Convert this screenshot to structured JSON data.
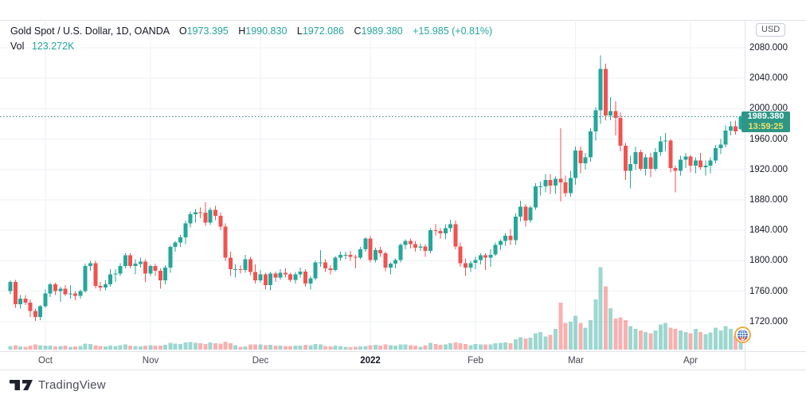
{
  "header": {
    "title": "Gold Spot / U.S. Dollar, 1D, OANDA",
    "o_label": "O",
    "o": "1973.395",
    "h_label": "H",
    "h": "1990.830",
    "l_label": "L",
    "l": "1972.086",
    "c_label": "C",
    "c": "1989.380",
    "change": "+15.985 (+0.81%)",
    "vol_label": "Vol",
    "vol_value": "123.272K"
  },
  "price_axis": {
    "currency_button": "USD",
    "tick_labels": [
      "2080.000",
      "2040.000",
      "2000.000",
      "1960.000",
      "1920.000",
      "1880.000",
      "1840.000",
      "1800.000",
      "1760.000",
      "1720.000"
    ]
  },
  "badge": {
    "price": "1989.380",
    "countdown": "13:59:25"
  },
  "footer": {
    "brand": "TradingView"
  },
  "colors": {
    "up": "#26a69a",
    "down": "#ef5350",
    "vol_up": "rgba(38,166,154,0.45)",
    "vol_down": "rgba(239,83,80,0.45)",
    "badge_bg": "#2d9687",
    "badge_price_text": "#ffffff",
    "badge_countdown_text": "#efe26a",
    "grid": "#eef1f6",
    "border": "#e0e3eb",
    "text": "#131722",
    "muted_text": "#50535e",
    "value_text": "#26a69a",
    "price_line": "#2d8f85",
    "background": "#ffffff"
  },
  "chart_data": {
    "type": "candlestick",
    "title": "Gold Spot / U.S. Dollar, 1D, OANDA",
    "interval": "1D",
    "exchange": "OANDA",
    "currency": "USD",
    "legend_position": "top-left",
    "grid": true,
    "y_ticks": [
      2080,
      2040,
      2000,
      1960,
      1920,
      1880,
      1840,
      1800,
      1760,
      1720
    ],
    "ylim": [
      1679,
      2117
    ],
    "x_ticks": [
      {
        "label": "Oct",
        "index": 7
      },
      {
        "label": "Nov",
        "index": 28
      },
      {
        "label": "Dec",
        "index": 50
      },
      {
        "label": "2022",
        "index": 72,
        "emphasis": true
      },
      {
        "label": "Feb",
        "index": 93
      },
      {
        "label": "Mar",
        "index": 113
      },
      {
        "label": "Apr",
        "index": 136
      }
    ],
    "last_price": 1989.38,
    "last_change": "+15.985 (+0.81%)",
    "countdown": "13:59:25",
    "volume_unit": "K",
    "last_volume": 123.272,
    "ohlcv": [
      [
        1760,
        1774,
        1756,
        1772,
        25
      ],
      [
        1772,
        1775,
        1738,
        1743,
        30
      ],
      [
        1743,
        1755,
        1737,
        1750,
        22
      ],
      [
        1750,
        1755,
        1742,
        1745,
        20
      ],
      [
        1745,
        1749,
        1726,
        1734,
        28
      ],
      [
        1734,
        1737,
        1721,
        1726,
        35
      ],
      [
        1726,
        1742,
        1722,
        1740,
        30
      ],
      [
        1740,
        1762,
        1738,
        1757,
        28
      ],
      [
        1757,
        1771,
        1752,
        1769,
        26
      ],
      [
        1769,
        1771,
        1755,
        1760,
        22
      ],
      [
        1760,
        1766,
        1746,
        1763,
        24
      ],
      [
        1763,
        1768,
        1754,
        1756,
        26
      ],
      [
        1756,
        1768,
        1750,
        1757,
        20
      ],
      [
        1757,
        1760,
        1748,
        1754,
        22
      ],
      [
        1754,
        1762,
        1750,
        1760,
        24
      ],
      [
        1760,
        1796,
        1758,
        1793,
        40
      ],
      [
        1793,
        1800,
        1787,
        1797,
        38
      ],
      [
        1797,
        1800,
        1764,
        1767,
        30
      ],
      [
        1767,
        1772,
        1760,
        1765,
        24
      ],
      [
        1765,
        1774,
        1761,
        1769,
        22
      ],
      [
        1769,
        1789,
        1766,
        1782,
        26
      ],
      [
        1782,
        1789,
        1772,
        1783,
        24
      ],
      [
        1783,
        1797,
        1780,
        1793,
        30
      ],
      [
        1793,
        1810,
        1790,
        1807,
        34
      ],
      [
        1807,
        1810,
        1790,
        1793,
        28
      ],
      [
        1793,
        1802,
        1782,
        1796,
        24
      ],
      [
        1796,
        1804,
        1791,
        1799,
        22
      ],
      [
        1799,
        1802,
        1772,
        1783,
        26
      ],
      [
        1783,
        1795,
        1780,
        1793,
        30
      ],
      [
        1793,
        1796,
        1780,
        1787,
        28
      ],
      [
        1787,
        1790,
        1763,
        1774,
        26
      ],
      [
        1774,
        1794,
        1769,
        1791,
        32
      ],
      [
        1791,
        1820,
        1784,
        1818,
        45
      ],
      [
        1818,
        1826,
        1812,
        1824,
        40
      ],
      [
        1824,
        1834,
        1818,
        1831,
        38
      ],
      [
        1831,
        1853,
        1822,
        1849,
        48
      ],
      [
        1849,
        1865,
        1844,
        1861,
        52
      ],
      [
        1861,
        1868,
        1850,
        1864,
        46
      ],
      [
        1864,
        1870,
        1856,
        1863,
        42
      ],
      [
        1863,
        1877,
        1846,
        1850,
        38
      ],
      [
        1850,
        1870,
        1847,
        1867,
        50
      ],
      [
        1867,
        1872,
        1853,
        1859,
        44
      ],
      [
        1859,
        1863,
        1840,
        1845,
        40
      ],
      [
        1845,
        1849,
        1800,
        1804,
        55
      ],
      [
        1804,
        1812,
        1780,
        1789,
        42
      ],
      [
        1789,
        1795,
        1778,
        1789,
        30
      ],
      [
        1789,
        1794,
        1783,
        1788,
        18
      ],
      [
        1788,
        1808,
        1784,
        1802,
        22
      ],
      [
        1802,
        1805,
        1781,
        1785,
        35
      ],
      [
        1785,
        1795,
        1770,
        1774,
        35
      ],
      [
        1774,
        1788,
        1771,
        1782,
        35
      ],
      [
        1782,
        1784,
        1762,
        1768,
        30
      ],
      [
        1768,
        1785,
        1761,
        1783,
        32
      ],
      [
        1783,
        1786,
        1772,
        1778,
        26
      ],
      [
        1778,
        1789,
        1775,
        1784,
        28
      ],
      [
        1784,
        1790,
        1778,
        1782,
        25
      ],
      [
        1782,
        1784,
        1772,
        1775,
        24
      ],
      [
        1775,
        1785,
        1770,
        1782,
        26
      ],
      [
        1782,
        1791,
        1778,
        1786,
        28
      ],
      [
        1786,
        1789,
        1766,
        1770,
        32
      ],
      [
        1770,
        1780,
        1762,
        1777,
        30
      ],
      [
        1777,
        1800,
        1774,
        1798,
        38
      ],
      [
        1798,
        1814,
        1792,
        1798,
        36
      ],
      [
        1798,
        1802,
        1785,
        1790,
        25
      ],
      [
        1790,
        1794,
        1782,
        1788,
        22
      ],
      [
        1788,
        1806,
        1786,
        1804,
        28
      ],
      [
        1804,
        1812,
        1800,
        1808,
        24
      ],
      [
        1808,
        1812,
        1802,
        1808,
        18
      ],
      [
        1808,
        1813,
        1800,
        1805,
        16
      ],
      [
        1805,
        1808,
        1790,
        1804,
        18
      ],
      [
        1804,
        1818,
        1802,
        1815,
        22
      ],
      [
        1815,
        1831,
        1812,
        1829,
        24
      ],
      [
        1829,
        1833,
        1798,
        1801,
        30
      ],
      [
        1801,
        1817,
        1798,
        1814,
        32
      ],
      [
        1814,
        1818,
        1805,
        1810,
        28
      ],
      [
        1810,
        1812,
        1786,
        1791,
        35
      ],
      [
        1791,
        1798,
        1782,
        1796,
        30
      ],
      [
        1796,
        1803,
        1790,
        1801,
        28
      ],
      [
        1801,
        1823,
        1798,
        1821,
        36
      ],
      [
        1821,
        1828,
        1815,
        1826,
        34
      ],
      [
        1826,
        1829,
        1816,
        1822,
        30
      ],
      [
        1822,
        1826,
        1812,
        1817,
        28
      ],
      [
        1817,
        1823,
        1813,
        1819,
        20
      ],
      [
        1819,
        1822,
        1805,
        1813,
        30
      ],
      [
        1813,
        1843,
        1810,
        1840,
        45
      ],
      [
        1840,
        1848,
        1833,
        1839,
        38
      ],
      [
        1839,
        1843,
        1829,
        1836,
        32
      ],
      [
        1836,
        1848,
        1828,
        1843,
        36
      ],
      [
        1843,
        1854,
        1838,
        1848,
        42
      ],
      [
        1848,
        1853,
        1815,
        1819,
        48
      ],
      [
        1819,
        1824,
        1792,
        1797,
        44
      ],
      [
        1797,
        1803,
        1780,
        1791,
        38
      ],
      [
        1791,
        1800,
        1785,
        1797,
        30
      ],
      [
        1797,
        1805,
        1789,
        1801,
        38
      ],
      [
        1801,
        1810,
        1795,
        1807,
        36
      ],
      [
        1807,
        1810,
        1788,
        1804,
        34
      ],
      [
        1804,
        1815,
        1792,
        1808,
        36
      ],
      [
        1808,
        1824,
        1806,
        1821,
        42
      ],
      [
        1821,
        1828,
        1814,
        1826,
        45
      ],
      [
        1826,
        1836,
        1820,
        1833,
        48
      ],
      [
        1833,
        1842,
        1821,
        1827,
        44
      ],
      [
        1827,
        1862,
        1821,
        1858,
        70
      ],
      [
        1858,
        1879,
        1852,
        1871,
        85
      ],
      [
        1871,
        1874,
        1845,
        1853,
        75
      ],
      [
        1853,
        1872,
        1850,
        1870,
        80
      ],
      [
        1870,
        1902,
        1867,
        1898,
        110
      ],
      [
        1898,
        1904,
        1886,
        1898,
        120
      ],
      [
        1898,
        1914,
        1890,
        1906,
        90
      ],
      [
        1906,
        1914,
        1888,
        1899,
        100
      ],
      [
        1899,
        1911,
        1888,
        1908,
        140
      ],
      [
        1908,
        1974,
        1878,
        1903,
        320
      ],
      [
        1903,
        1912,
        1884,
        1889,
        180
      ],
      [
        1889,
        1918,
        1884,
        1909,
        190
      ],
      [
        1909,
        1950,
        1900,
        1945,
        230
      ],
      [
        1945,
        1950,
        1915,
        1928,
        180
      ],
      [
        1928,
        1942,
        1920,
        1936,
        150
      ],
      [
        1936,
        1974,
        1930,
        1970,
        200
      ],
      [
        1970,
        2002,
        1958,
        1998,
        340
      ],
      [
        1998,
        2070,
        1980,
        2052,
        560
      ],
      [
        2052,
        2059,
        1985,
        1991,
        430
      ],
      [
        1991,
        2015,
        1985,
        1997,
        280
      ],
      [
        1997,
        2010,
        1965,
        1988,
        210
      ],
      [
        1988,
        1995,
        1944,
        1951,
        220
      ],
      [
        1951,
        1955,
        1906,
        1918,
        200
      ],
      [
        1918,
        1938,
        1895,
        1927,
        160
      ],
      [
        1927,
        1950,
        1919,
        1943,
        140
      ],
      [
        1943,
        1946,
        1918,
        1921,
        130
      ],
      [
        1921,
        1940,
        1912,
        1936,
        120
      ],
      [
        1936,
        1942,
        1910,
        1921,
        110
      ],
      [
        1921,
        1948,
        1918,
        1943,
        130
      ],
      [
        1943,
        1964,
        1938,
        1957,
        170
      ],
      [
        1957,
        1968,
        1944,
        1958,
        180
      ],
      [
        1958,
        1960,
        1916,
        1922,
        150
      ],
      [
        1922,
        1925,
        1890,
        1918,
        140
      ],
      [
        1918,
        1938,
        1912,
        1933,
        130
      ],
      [
        1933,
        1942,
        1922,
        1937,
        120
      ],
      [
        1937,
        1939,
        1916,
        1925,
        110
      ],
      [
        1925,
        1936,
        1915,
        1932,
        140
      ],
      [
        1932,
        1942,
        1920,
        1923,
        120
      ],
      [
        1923,
        1932,
        1912,
        1925,
        105
      ],
      [
        1925,
        1936,
        1915,
        1932,
        115
      ],
      [
        1932,
        1952,
        1928,
        1948,
        150
      ],
      [
        1948,
        1960,
        1940,
        1953,
        130
      ],
      [
        1953,
        1978,
        1949,
        1971,
        160
      ],
      [
        1971,
        1983,
        1965,
        1977,
        140
      ],
      [
        1977,
        1984,
        1966,
        1970,
        95
      ],
      [
        1973.395,
        1990.83,
        1972.086,
        1989.38,
        123.272
      ]
    ]
  }
}
